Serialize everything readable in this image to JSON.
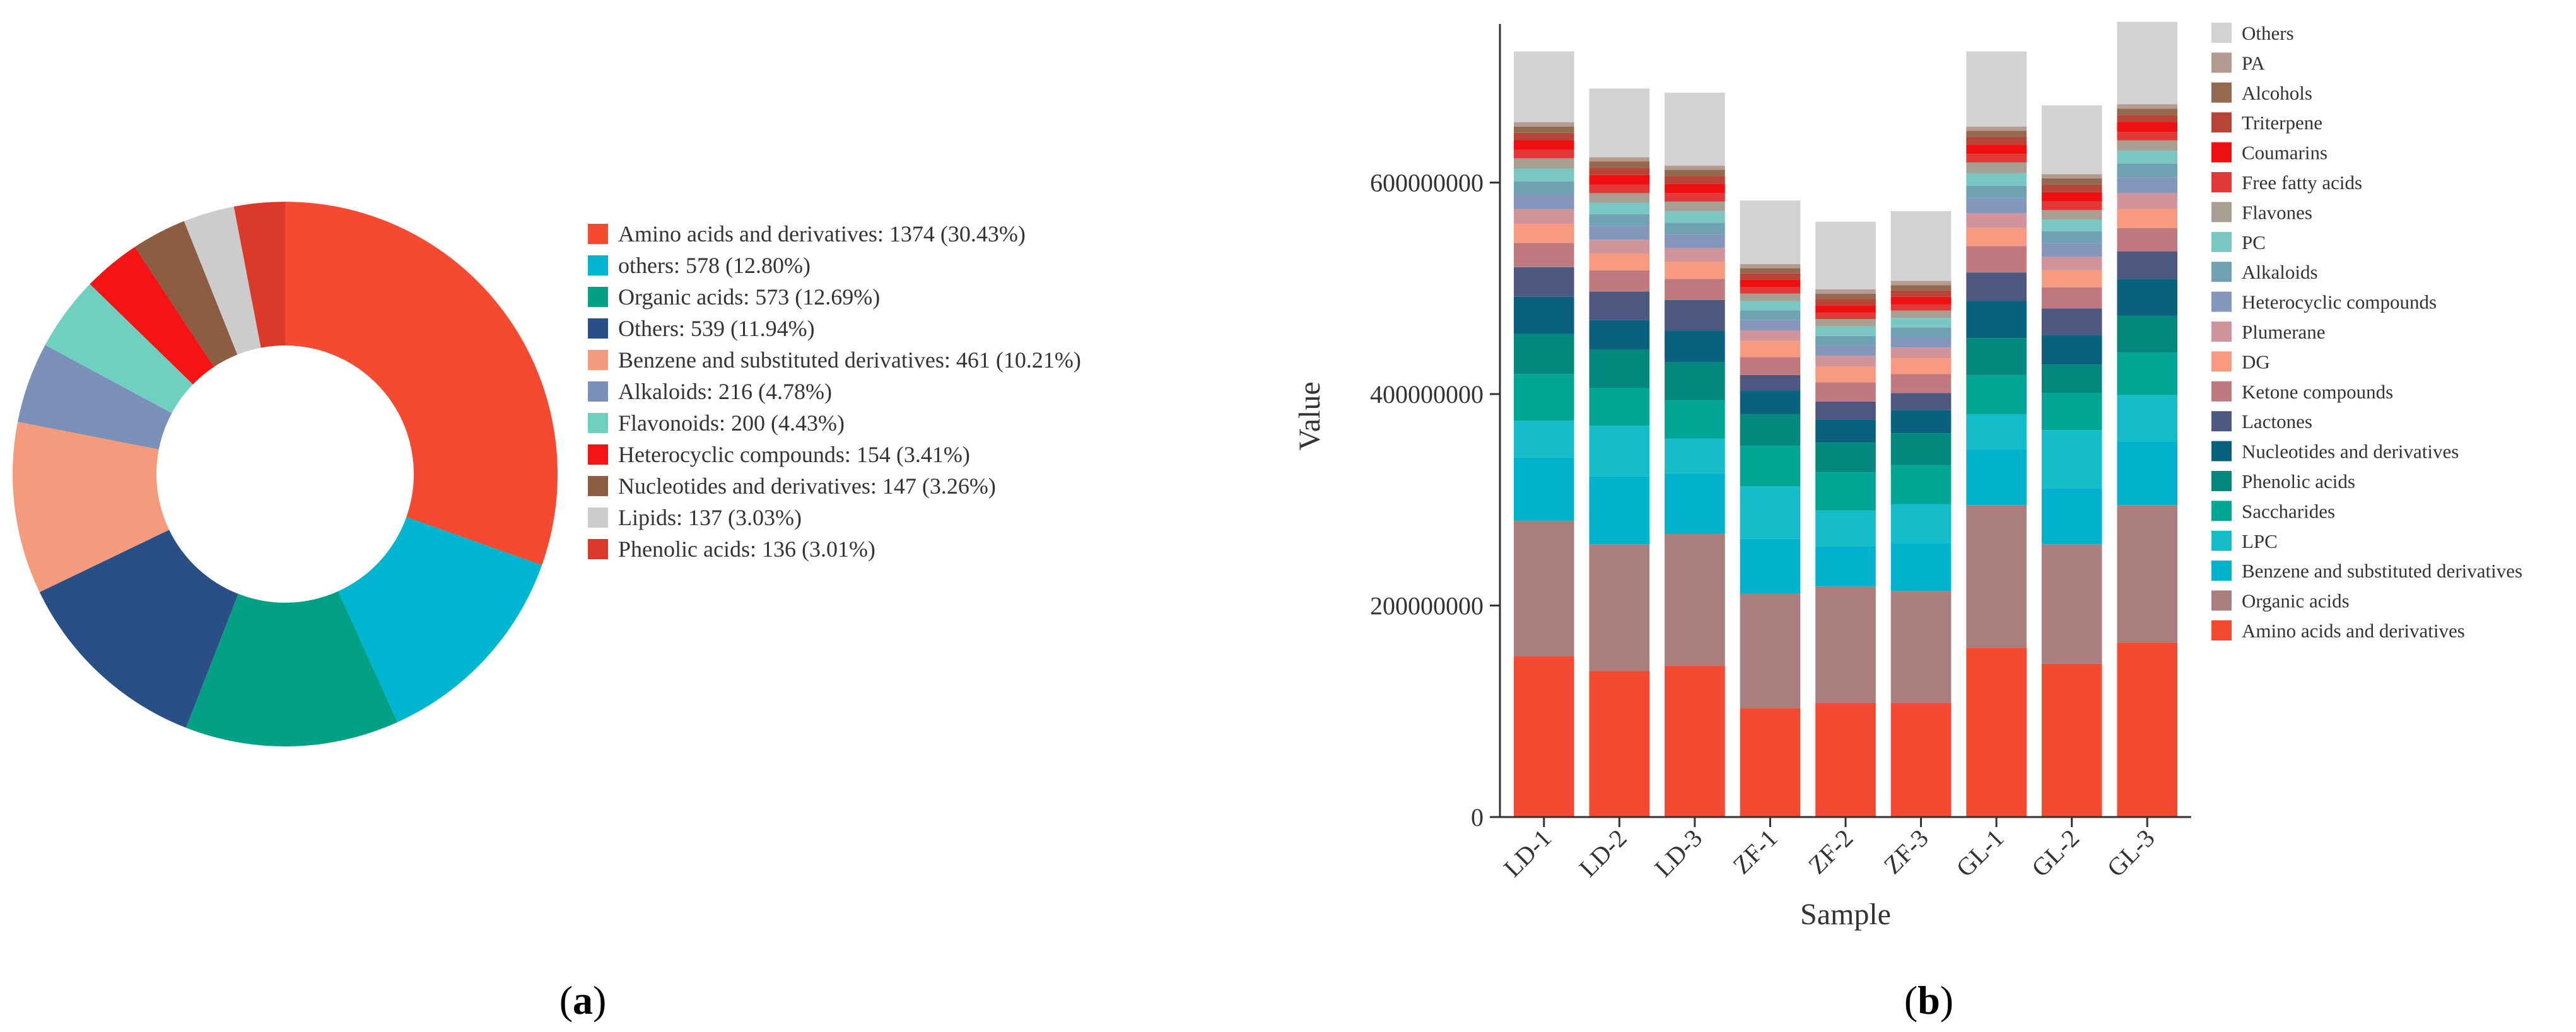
{
  "chart_data": [
    {
      "type": "pie",
      "variant": "donut",
      "panel_label": "a",
      "title": "",
      "slices": [
        {
          "label": "Amino acids and derivatives",
          "value": 1374,
          "percent": "30.43%",
          "color": "#F44A32"
        },
        {
          "label": "others",
          "value": 578,
          "percent": "12.80%",
          "color": "#00B5CF"
        },
        {
          "label": "Organic acids",
          "value": 573,
          "percent": "12.69%",
          "color": "#02A084"
        },
        {
          "label": "Others",
          "value": 539,
          "percent": "11.94%",
          "color": "#2A4F86"
        },
        {
          "label": "Benzene and substituted derivatives",
          "value": 461,
          "percent": "10.21%",
          "color": "#F59B7D"
        },
        {
          "label": "Alkaloids",
          "value": 216,
          "percent": "4.78%",
          "color": "#7A90B8"
        },
        {
          "label": "Flavonoids",
          "value": 200,
          "percent": "4.43%",
          "color": "#6FD0C0"
        },
        {
          "label": "Heterocyclic compounds",
          "value": 154,
          "percent": "3.41%",
          "color": "#F41414"
        },
        {
          "label": "Nucleotides and derivatives",
          "value": 147,
          "percent": "3.26%",
          "color": "#8B5E43"
        },
        {
          "label": "Lipids",
          "value": 137,
          "percent": "3.03%",
          "color": "#CCCCCC"
        },
        {
          "label": "Phenolic acids",
          "value": 136,
          "percent": "3.01%",
          "color": "#DB3A2B"
        }
      ]
    },
    {
      "type": "bar",
      "stacked": true,
      "panel_label": "b",
      "title": "",
      "xlabel": "Sample",
      "ylabel": "Value",
      "ylim": [
        0,
        750000000
      ],
      "yticks": [
        0,
        200000000,
        400000000,
        600000000
      ],
      "ytick_labels": [
        "0",
        "200000000",
        "400000000",
        "600000000"
      ],
      "categories": [
        "LD-1",
        "LD-2",
        "LD-3",
        "ZF-1",
        "ZF-2",
        "ZF-3",
        "GL-1",
        "GL-2",
        "GL-3"
      ],
      "series": [
        {
          "name": "Amino acids and derivatives",
          "color": "#F44A32",
          "values": [
            152000000,
            138000000,
            143000000,
            103000000,
            108000000,
            108000000,
            160000000,
            145000000,
            165000000
          ]
        },
        {
          "name": "Organic acids",
          "color": "#AA7E7C",
          "values": [
            128000000,
            120000000,
            125000000,
            108000000,
            110000000,
            106000000,
            135000000,
            113000000,
            130000000
          ]
        },
        {
          "name": "Benzene and substituted derivatives",
          "color": "#00B2CB",
          "values": [
            60000000,
            64000000,
            57000000,
            52000000,
            38000000,
            45000000,
            53000000,
            53000000,
            60000000
          ]
        },
        {
          "name": "LPC",
          "color": "#15BDC9",
          "values": [
            35000000,
            48000000,
            33000000,
            50000000,
            34000000,
            37000000,
            33000000,
            55000000,
            44000000
          ]
        },
        {
          "name": "Saccharides",
          "color": "#00A693",
          "values": [
            44000000,
            36000000,
            36000000,
            38000000,
            36000000,
            37000000,
            37000000,
            35000000,
            40000000
          ]
        },
        {
          "name": "Phenolic acids",
          "color": "#04887E",
          "values": [
            38000000,
            36000000,
            36000000,
            30000000,
            28000000,
            30000000,
            35000000,
            27000000,
            35000000
          ]
        },
        {
          "name": "Nucleotides and derivatives",
          "color": "#09617E",
          "values": [
            35000000,
            28000000,
            30000000,
            22000000,
            22000000,
            22000000,
            35000000,
            28000000,
            35000000
          ]
        },
        {
          "name": "Lactones",
          "color": "#4C5880",
          "values": [
            28000000,
            27000000,
            29000000,
            15000000,
            17000000,
            16000000,
            27000000,
            25000000,
            26000000
          ]
        },
        {
          "name": "Ketone compounds",
          "color": "#C07A7F",
          "values": [
            23000000,
            20000000,
            20000000,
            17000000,
            18000000,
            18000000,
            25000000,
            20000000,
            22000000
          ]
        },
        {
          "name": "DG",
          "color": "#F89A80",
          "values": [
            18000000,
            16000000,
            16000000,
            15000000,
            15000000,
            15000000,
            17000000,
            16000000,
            18000000
          ]
        },
        {
          "name": "Plumerane",
          "color": "#D0949A",
          "values": [
            14000000,
            13000000,
            13000000,
            10000000,
            10000000,
            10000000,
            14000000,
            13000000,
            15000000
          ]
        },
        {
          "name": "Heterocyclic compounds",
          "color": "#8596BC",
          "values": [
            14000000,
            13000000,
            13000000,
            10000000,
            10000000,
            10000000,
            14000000,
            13000000,
            15000000
          ]
        },
        {
          "name": "Alkaloids",
          "color": "#6FA3B4",
          "values": [
            12000000,
            11000000,
            11000000,
            9000000,
            9000000,
            9000000,
            12000000,
            11000000,
            13000000
          ]
        },
        {
          "name": "PC",
          "color": "#79C6C2",
          "values": [
            12000000,
            11000000,
            11000000,
            9000000,
            9000000,
            9000000,
            12000000,
            11000000,
            12000000
          ]
        },
        {
          "name": "Flavones",
          "color": "#A89E92",
          "values": [
            10000000,
            9000000,
            9000000,
            7000000,
            7000000,
            7000000,
            10000000,
            9000000,
            10000000
          ]
        },
        {
          "name": "Free fatty acids",
          "color": "#E33838",
          "values": [
            8000000,
            8000000,
            8000000,
            6000000,
            6000000,
            6000000,
            8000000,
            8000000,
            8000000
          ]
        },
        {
          "name": "Coumarins",
          "color": "#EE1010",
          "values": [
            9000000,
            9000000,
            9000000,
            7000000,
            7000000,
            7000000,
            9000000,
            9000000,
            9000000
          ]
        },
        {
          "name": "Triterpene",
          "color": "#B84337",
          "values": [
            7000000,
            7000000,
            7000000,
            6000000,
            6000000,
            6000000,
            7000000,
            7000000,
            7000000
          ]
        },
        {
          "name": "Alcohols",
          "color": "#946A4E",
          "values": [
            6000000,
            6000000,
            6000000,
            5000000,
            5000000,
            5000000,
            6000000,
            6000000,
            6000000
          ]
        },
        {
          "name": "PA",
          "color": "#B49A90",
          "values": [
            4000000,
            4000000,
            4000000,
            4000000,
            4000000,
            4000000,
            4000000,
            4000000,
            4000000
          ]
        },
        {
          "name": "Others",
          "color": "#D2D2D2",
          "values": [
            67000000,
            65000000,
            69000000,
            60000000,
            64000000,
            66000000,
            71000000,
            65000000,
            78000000
          ]
        }
      ]
    }
  ]
}
